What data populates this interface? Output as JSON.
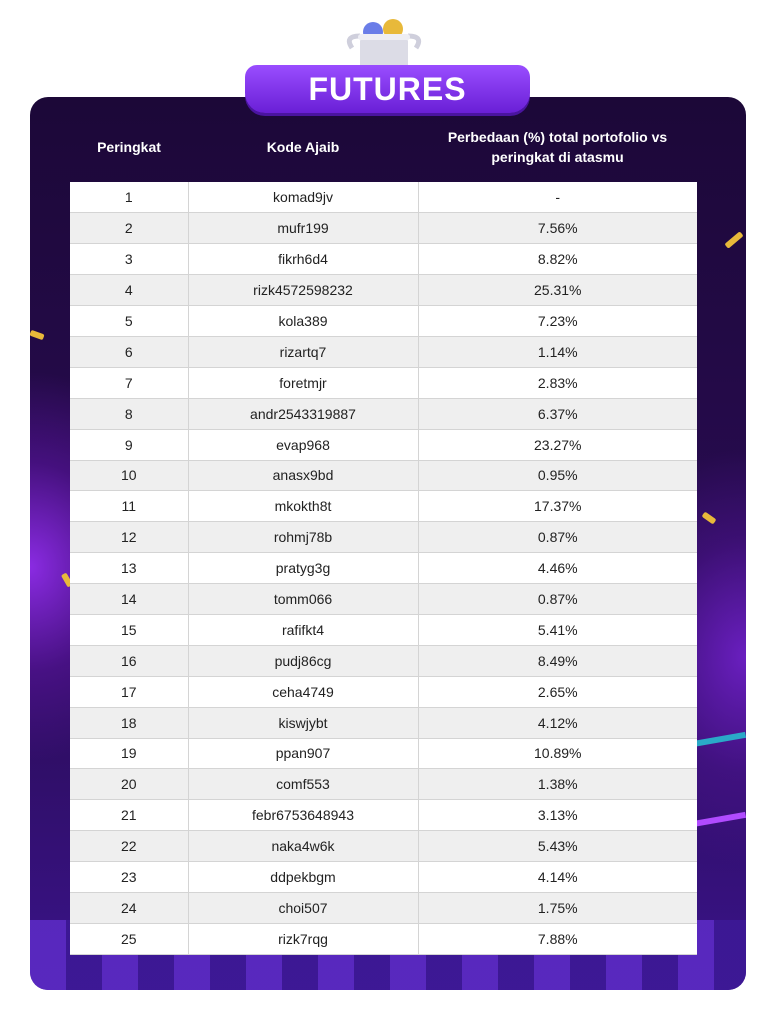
{
  "title": "FUTURES",
  "columns": {
    "rank": "Peringkat",
    "code": "Kode Ajaib",
    "diff": "Perbedaan (%) total portofolio vs peringkat di atasmu"
  },
  "rows": [
    {
      "rank": "1",
      "code": "komad9jv",
      "diff": "-"
    },
    {
      "rank": "2",
      "code": "mufr199",
      "diff": "7.56%"
    },
    {
      "rank": "3",
      "code": "fikrh6d4",
      "diff": "8.82%"
    },
    {
      "rank": "4",
      "code": "rizk4572598232",
      "diff": "25.31%"
    },
    {
      "rank": "5",
      "code": "kola389",
      "diff": "7.23%"
    },
    {
      "rank": "6",
      "code": "rizartq7",
      "diff": "1.14%"
    },
    {
      "rank": "7",
      "code": "foretmjr",
      "diff": "2.83%"
    },
    {
      "rank": "8",
      "code": "andr2543319887",
      "diff": "6.37%"
    },
    {
      "rank": "9",
      "code": "evap968",
      "diff": "23.27%"
    },
    {
      "rank": "10",
      "code": "anasx9bd",
      "diff": "0.95%"
    },
    {
      "rank": "11",
      "code": "mkokth8t",
      "diff": "17.37%"
    },
    {
      "rank": "12",
      "code": "rohmj78b",
      "diff": "0.87%"
    },
    {
      "rank": "13",
      "code": "pratyg3g",
      "diff": "4.46%"
    },
    {
      "rank": "14",
      "code": "tomm066",
      "diff": "0.87%"
    },
    {
      "rank": "15",
      "code": "rafifkt4",
      "diff": "5.41%"
    },
    {
      "rank": "16",
      "code": "pudj86cg",
      "diff": "8.49%"
    },
    {
      "rank": "17",
      "code": "ceha4749",
      "diff": "2.65%"
    },
    {
      "rank": "18",
      "code": "kiswjybt",
      "diff": "4.12%"
    },
    {
      "rank": "19",
      "code": "ppan907",
      "diff": "10.89%"
    },
    {
      "rank": "20",
      "code": "comf553",
      "diff": "1.38%"
    },
    {
      "rank": "21",
      "code": "febr6753648943",
      "diff": "3.13%"
    },
    {
      "rank": "22",
      "code": "naka4w6k",
      "diff": "5.43%"
    },
    {
      "rank": "23",
      "code": "ddpekbgm",
      "diff": "4.14%"
    },
    {
      "rank": "24",
      "code": "choi507",
      "diff": "1.75%"
    },
    {
      "rank": "25",
      "code": "rizk7rqg",
      "diff": "7.88%"
    }
  ],
  "colors": {
    "background": "#1c0838",
    "banner": "#7b2ff0",
    "accent": "#e8b93a"
  }
}
